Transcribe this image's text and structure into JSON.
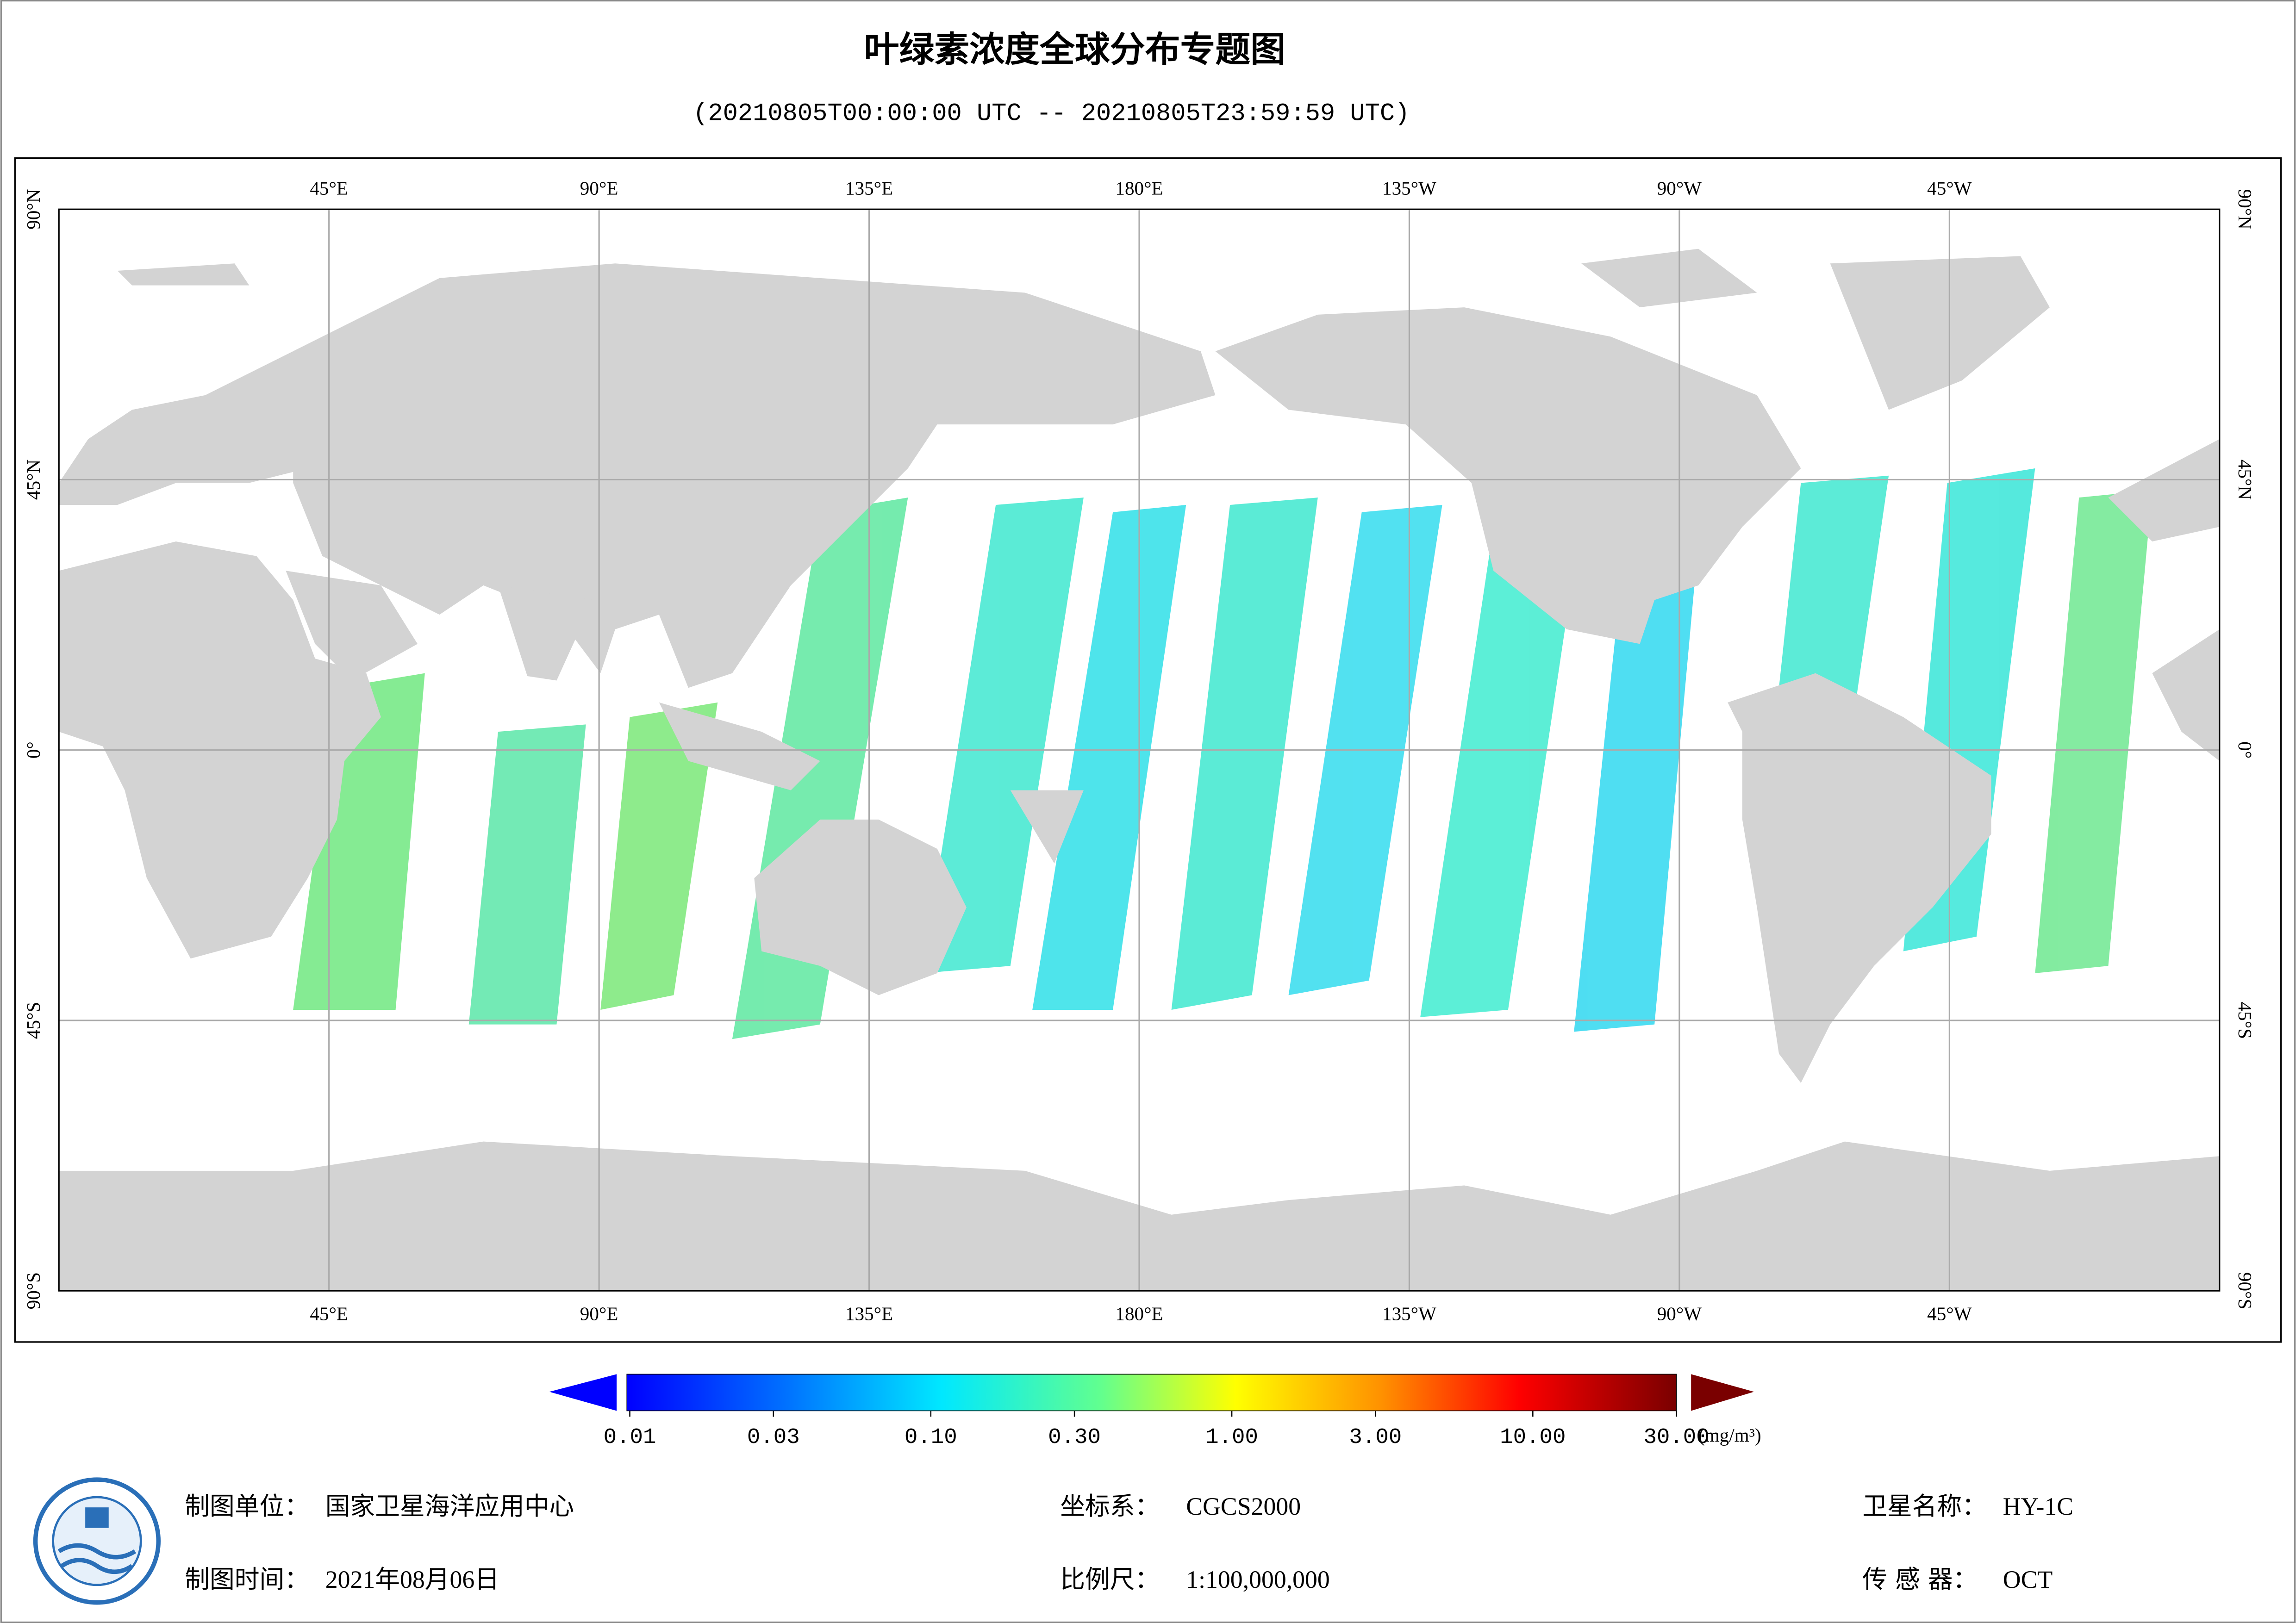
{
  "header": {
    "title": "叶绿素浓度全球分布专题图",
    "subtitle": "(20210805T00:00:00 UTC -- 20210805T23:59:59 UTC)"
  },
  "map": {
    "lon_labels": [
      "45°E",
      "90°E",
      "135°E",
      "180°E",
      "135°W",
      "90°W",
      "45°W"
    ],
    "lat_labels": [
      "90°N",
      "45°N",
      "0°",
      "45°S",
      "90°S"
    ]
  },
  "colorbar": {
    "range": [
      0.01,
      30
    ],
    "log_scale": true,
    "unit": "(mg/m³)",
    "ticks": [
      {
        "value": 0.01,
        "label": "0.01"
      },
      {
        "value": 0.03,
        "label": "0.03"
      },
      {
        "value": 0.1,
        "label": "0.10"
      },
      {
        "value": 0.3,
        "label": "0.30"
      },
      {
        "value": 1,
        "label": "1.00"
      },
      {
        "value": 3,
        "label": "3.00"
      },
      {
        "value": 10,
        "label": "10.00"
      },
      {
        "value": 30,
        "label": "30.00"
      }
    ]
  },
  "footer": {
    "unit": {
      "label": "制图单位：",
      "value": "国家卫星海洋应用中心"
    },
    "date": {
      "label": "制图时间：",
      "value": "2021年08月06日"
    },
    "crs": {
      "label": "坐标系：",
      "value": "CGCS2000"
    },
    "scale": {
      "label": "比例尺：",
      "value": "1:100,000,000"
    },
    "satellite": {
      "label": "卫星名称：",
      "value": "HY-1C"
    },
    "sensor": {
      "label": "传 感 器：",
      "value": "OCT"
    }
  }
}
